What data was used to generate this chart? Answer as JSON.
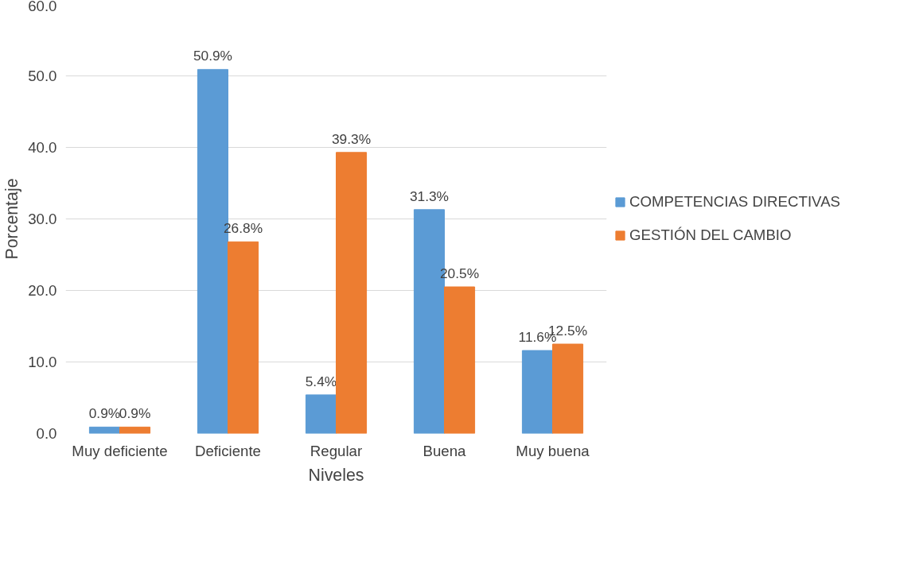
{
  "chart_data": {
    "type": "bar",
    "xlabel": "Niveles",
    "ylabel": "Porcentaje",
    "categories": [
      "Muy deficiente",
      "Deficiente",
      "Regular",
      "Buena",
      "Muy buena"
    ],
    "series": [
      {
        "name": "COMPETENCIAS DIRECTIVAS",
        "color": "#5b9bd5",
        "values": [
          0.9,
          50.9,
          5.4,
          31.3,
          11.6
        ],
        "value_labels": [
          "0.9%",
          "50.9%",
          "5.4%",
          "31.3%",
          "11.6%"
        ]
      },
      {
        "name": "GESTIÓN DEL CAMBIO",
        "color": "#ed7d31",
        "values": [
          0.9,
          26.8,
          39.3,
          20.5,
          12.5
        ],
        "value_labels": [
          "0.9%",
          "26.8%",
          "39.3%",
          "20.5%",
          "12.5%"
        ]
      }
    ],
    "ylim": [
      0,
      60
    ],
    "yticks": [
      {
        "value": 0,
        "label": "0.0"
      },
      {
        "value": 10,
        "label": "10.0"
      },
      {
        "value": 20,
        "label": "20.0"
      },
      {
        "value": 30,
        "label": "30.0"
      },
      {
        "value": 40,
        "label": "40.0"
      },
      {
        "value": 50,
        "label": "50.0"
      },
      {
        "value": 60,
        "label": "60.0"
      }
    ],
    "grid": "y",
    "legend": "right"
  }
}
